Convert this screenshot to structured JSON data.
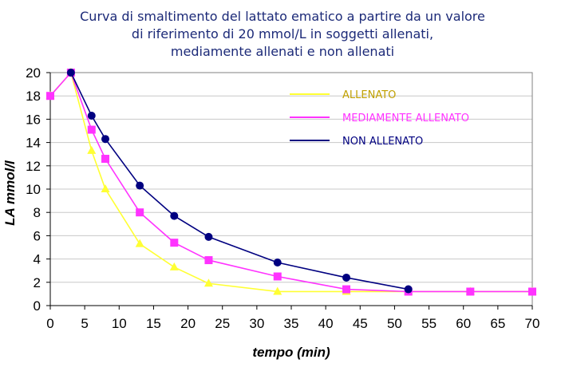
{
  "chart_data": {
    "type": "line",
    "title": [
      "Curva di smaltimento del lattato ematico a partire da un valore",
      "di riferimento di 20 mmol/L in soggetti allenati,",
      "mediamente allenati e non allenati"
    ],
    "xlabel": "tempo (min)",
    "ylabel": "LA mmol/l",
    "xlim": [
      0,
      70
    ],
    "ylim": [
      0,
      20
    ],
    "xticks": [
      0,
      5,
      10,
      15,
      20,
      25,
      30,
      35,
      40,
      45,
      50,
      55,
      60,
      65,
      70
    ],
    "yticks": [
      0,
      2,
      4,
      6,
      8,
      10,
      12,
      14,
      16,
      18,
      20
    ],
    "grid": "horizontal",
    "legend_position": "top-right",
    "series": [
      {
        "name": "ALLENATO",
        "color": "#ffff33",
        "label_color": "#c0a000",
        "marker": "triangle",
        "x": [
          0,
          3,
          6,
          8,
          13,
          18,
          23,
          33,
          43,
          52,
          61,
          70
        ],
        "y": [
          18,
          20,
          13.3,
          10,
          5.3,
          3.3,
          1.9,
          1.2,
          1.2,
          1.2,
          1.2,
          1.2
        ]
      },
      {
        "name": "MEDIAMENTE ALLENATO",
        "color": "#ff33ff",
        "label_color": "#ff33ff",
        "marker": "square",
        "x": [
          0,
          3,
          6,
          8,
          13,
          18,
          23,
          33,
          43,
          52,
          61,
          70
        ],
        "y": [
          18,
          20,
          15.1,
          12.6,
          8,
          5.4,
          3.9,
          2.5,
          1.4,
          1.2,
          1.2,
          1.2
        ]
      },
      {
        "name": "NON ALLENATO",
        "color": "#000080",
        "label_color": "#000080",
        "marker": "circle",
        "x": [
          3,
          6,
          8,
          13,
          18,
          23,
          33,
          43,
          52
        ],
        "y": [
          20,
          16.3,
          14.3,
          10.3,
          7.7,
          5.9,
          3.7,
          2.4,
          1.4
        ]
      }
    ]
  }
}
